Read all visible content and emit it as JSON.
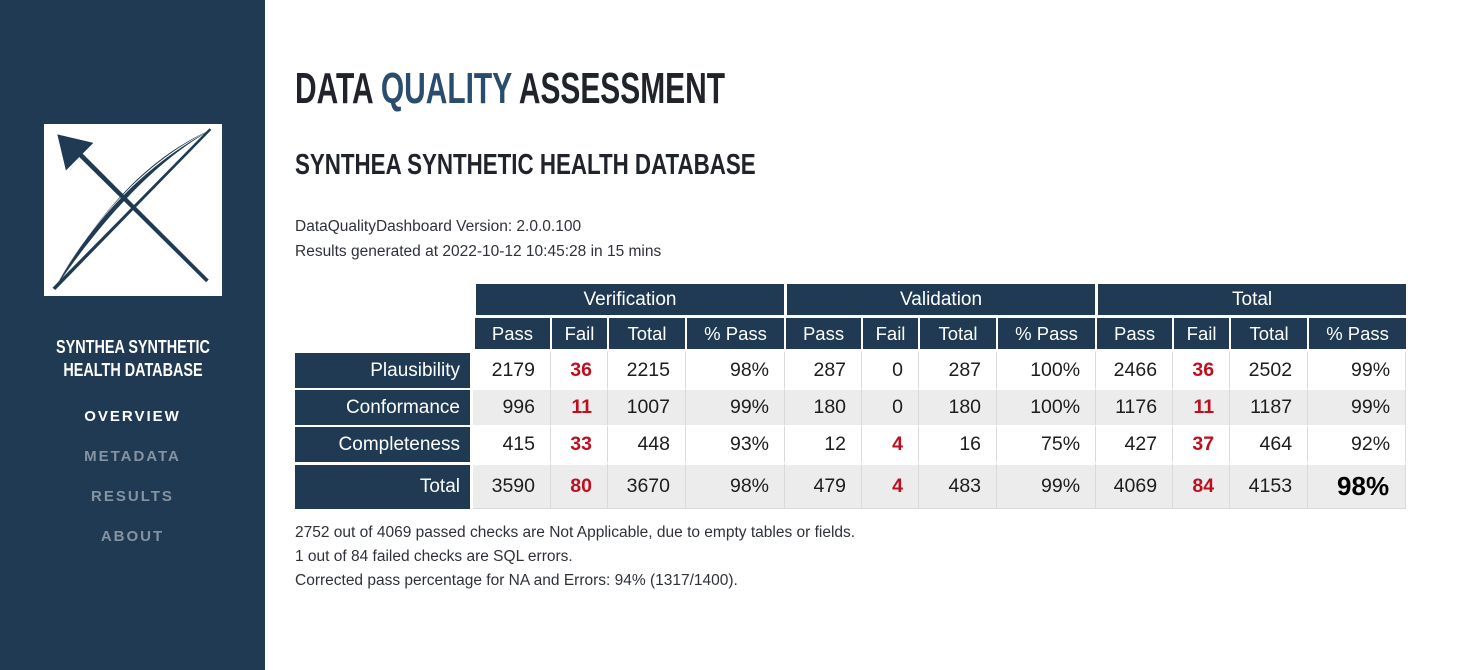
{
  "colors": {
    "navy": "#1f3a52",
    "title_highlight": "#2a4d6e",
    "fail_red": "#bf0f1f",
    "alt_row": "#ececec",
    "nav_inactive": "#8593a2"
  },
  "sidebar": {
    "logo": "synthea-bow-arrow-logo",
    "title": "SYNTHEA SYNTHETIC HEALTH DATABASE",
    "nav": [
      {
        "label": "OVERVIEW",
        "active": true
      },
      {
        "label": "METADATA",
        "active": false
      },
      {
        "label": "RESULTS",
        "active": false
      },
      {
        "label": "ABOUT",
        "active": false
      }
    ]
  },
  "header": {
    "title_prefix": "DATA ",
    "title_highlight": "QUALITY",
    "title_suffix": " ASSESSMENT",
    "subtitle": "SYNTHEA SYNTHETIC HEALTH DATABASE",
    "version_line": "DataQualityDashboard Version: 2.0.0.100",
    "generated_line": "Results generated at 2022-10-12 10:45:28 in 15 mins"
  },
  "table": {
    "groups": [
      "Verification",
      "Validation",
      "Total"
    ],
    "sub_headers": [
      "Pass",
      "Fail",
      "Total",
      "% Pass"
    ],
    "rows": [
      {
        "label": "Plausibility",
        "cells": [
          "2179",
          "36",
          "2215",
          "98%",
          "287",
          "0",
          "287",
          "100%",
          "2466",
          "36",
          "2502",
          "99%"
        ]
      },
      {
        "label": "Conformance",
        "cells": [
          "996",
          "11",
          "1007",
          "99%",
          "180",
          "0",
          "180",
          "100%",
          "1176",
          "11",
          "1187",
          "99%"
        ]
      },
      {
        "label": "Completeness",
        "cells": [
          "415",
          "33",
          "448",
          "93%",
          "12",
          "4",
          "16",
          "75%",
          "427",
          "37",
          "464",
          "92%"
        ]
      },
      {
        "label": "Total",
        "cells": [
          "3590",
          "80",
          "3670",
          "98%",
          "479",
          "4",
          "483",
          "99%",
          "4069",
          "84",
          "4153",
          "98%"
        ],
        "is_total": true
      }
    ]
  },
  "footnotes": [
    "2752 out of 4069 passed checks are Not Applicable, due to empty tables or fields.",
    "1 out of 84 failed checks are SQL errors.",
    "Corrected pass percentage for NA and Errors: 94% (1317/1400)."
  ]
}
